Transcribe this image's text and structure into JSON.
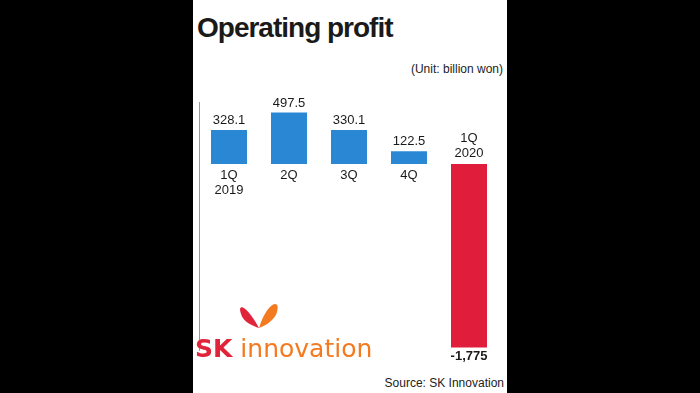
{
  "chart_data": {
    "type": "bar",
    "title": "Operating profit",
    "subtitle": "(Unit: billion won)",
    "source": "Source: SK Innovation",
    "logo": "SK innovation",
    "categories": [
      "1Q 2019",
      "2Q",
      "3Q",
      "4Q",
      "1Q 2020"
    ],
    "values": [
      328.1,
      497.5,
      330.1,
      122.5,
      -1775
    ],
    "value_labels": [
      "328.1",
      "497.5",
      "330.1",
      "122.5",
      "-1,775"
    ],
    "colors": [
      "#2a87d3",
      "#2a87d3",
      "#2a87d3",
      "#2a87d3",
      "#e11d3c"
    ],
    "ylim": [
      -1800,
      600
    ],
    "yticks": [],
    "grid": false,
    "data_labels": true,
    "tick_labels": "x"
  }
}
